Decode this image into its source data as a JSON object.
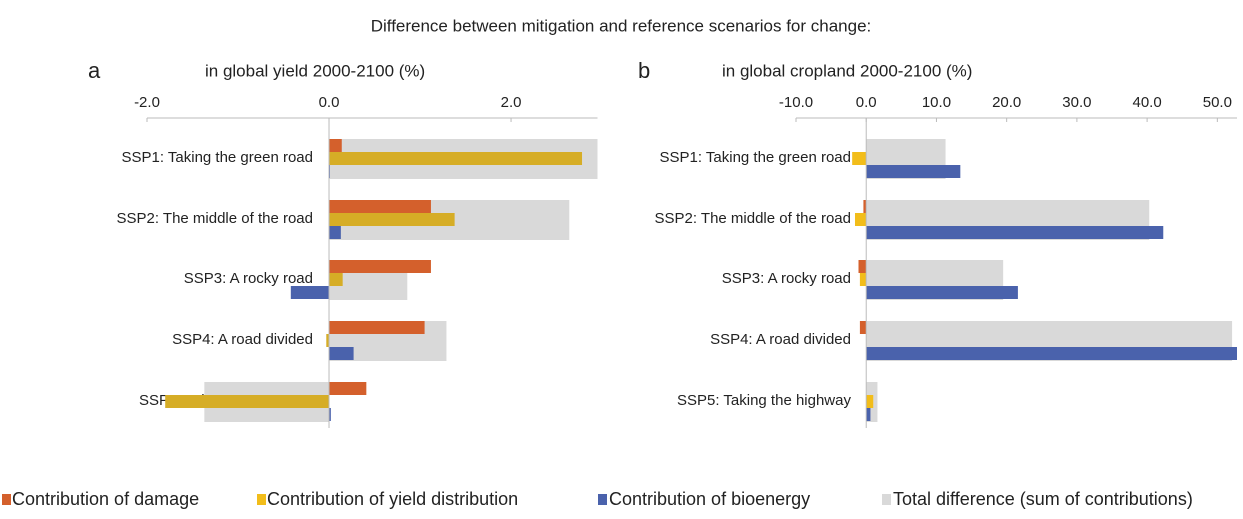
{
  "title": "Difference between mitigation and reference scenarios for change:",
  "chart_data": [
    {
      "type": "hbar",
      "panel": "a",
      "title": "in global yield 2000-2100 (%)",
      "categories": [
        "SSP1: Taking the green road",
        "SSP2: The middle of the road",
        "SSP3: A rocky road",
        "SSP4: A road divided",
        "SSP5: Taking the highway"
      ],
      "xlim": [
        -2,
        2.95
      ],
      "xticks": [
        {
          "value": -2,
          "label": "-2.0"
        },
        {
          "value": 0,
          "label": "0.0"
        },
        {
          "value": 2,
          "label": "2.0"
        }
      ],
      "series": [
        {
          "name": "Total difference (sum of contributions)",
          "color": "#d9d9d9",
          "values": [
            2.95,
            2.64,
            0.86,
            1.29,
            -1.37
          ]
        },
        {
          "name": "Contribution of damage",
          "color": "#d4602c",
          "values": [
            0.14,
            1.12,
            1.12,
            1.05,
            0.41
          ]
        },
        {
          "name": "Contribution of yield distribution",
          "color": "#d6ad26",
          "values": [
            2.78,
            1.38,
            0.15,
            -0.03,
            -1.8
          ]
        },
        {
          "name": "Contribution of bioenergy",
          "color": "#4a62ac",
          "values": [
            0.01,
            0.13,
            -0.42,
            0.27,
            0.02
          ]
        }
      ]
    },
    {
      "type": "hbar",
      "panel": "b",
      "title": "in global cropland 2000-2100 (%)",
      "categories": [
        "SSP1: Taking the green road",
        "SSP2: The middle of the road",
        "SSP3: A rocky road",
        "SSP4: A road divided",
        "SSP5: Taking the highway"
      ],
      "xlim": [
        -10,
        52.8
      ],
      "xticks": [
        {
          "value": -10,
          "label": "-10.0"
        },
        {
          "value": 0,
          "label": "0.0"
        },
        {
          "value": 10,
          "label": "10.0"
        },
        {
          "value": 20,
          "label": "20.0"
        },
        {
          "value": 30,
          "label": "30.0"
        },
        {
          "value": 40,
          "label": "40.0"
        },
        {
          "value": 50,
          "label": "50.0"
        }
      ],
      "series": [
        {
          "name": "Total difference (sum of contributions)",
          "color": "#d9d9d9",
          "values": [
            11.3,
            40.3,
            19.5,
            52.1,
            1.6
          ]
        },
        {
          "name": "Contribution of damage",
          "color": "#d4602c",
          "values": [
            0,
            -0.4,
            -1.1,
            -0.9,
            0
          ]
        },
        {
          "name": "Contribution of yield distribution",
          "color": "#f2bd1a",
          "values": [
            -2.0,
            -1.6,
            -0.9,
            0,
            1.0
          ]
        },
        {
          "name": "Contribution of bioenergy",
          "color": "#4a62ac",
          "values": [
            13.4,
            42.3,
            21.6,
            52.8,
            0.6
          ]
        }
      ]
    }
  ]
}
